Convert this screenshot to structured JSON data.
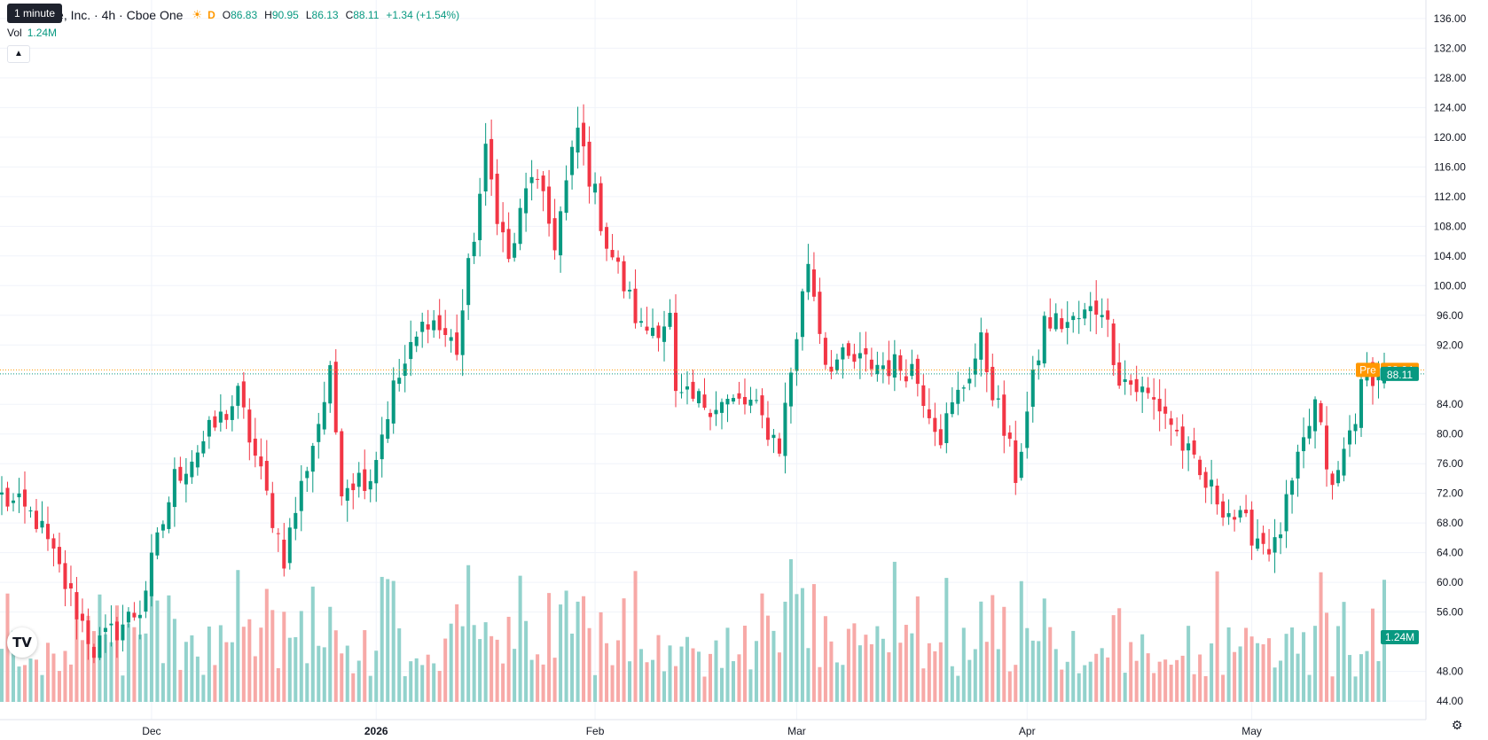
{
  "header": {
    "symbol_text": "aceMobile, Inc. · 4h · Cboe One",
    "market_icon": "sun-icon",
    "session_letter": "D",
    "o_label": "O",
    "o_value": "86.83",
    "h_label": "H",
    "h_value": "90.95",
    "l_label": "L",
    "l_value": "86.13",
    "c_label": "C",
    "c_value": "88.11",
    "change": "+1.34 (+1.54%)",
    "tooltip": "1 minute"
  },
  "volume_legend": {
    "label": "Vol",
    "value": "1.24M"
  },
  "price_tags": {
    "pre_label": "Pre",
    "pre_value": "88.64",
    "last_value": "88.11",
    "volume_value": "1.24M"
  },
  "colors": {
    "up": "#089981",
    "down": "#f23645",
    "up_vol": "#92d2cc",
    "down_vol": "#f7a9a7",
    "pre": "#ff9800",
    "grid": "#f0f3fa"
  },
  "icons": {
    "collapse": "chevron-up-icon",
    "logo": "tradingview-logo",
    "settings": "gear-icon"
  },
  "logo_text": "TV",
  "chart_data": {
    "type": "candlestick",
    "y_axis_ticks": [
      "136.00",
      "132.00",
      "128.00",
      "124.00",
      "120.00",
      "116.00",
      "112.00",
      "108.00",
      "104.00",
      "100.00",
      "96.00",
      "92.00",
      "84.00",
      "80.00",
      "76.00",
      "72.00",
      "68.00",
      "64.00",
      "60.00",
      "56.00",
      "48.00",
      "44.00"
    ],
    "y_range": [
      41.5,
      138.5
    ],
    "x_axis_labels": [
      {
        "label": "Dec",
        "bar": 26,
        "bold": false
      },
      {
        "label": "2026",
        "bar": 65,
        "bold": true
      },
      {
        "label": "Feb",
        "bar": 103,
        "bold": false
      },
      {
        "label": "Mar",
        "bar": 138,
        "bold": false
      },
      {
        "label": "Apr",
        "bar": 178,
        "bold": false
      },
      {
        "label": "May",
        "bar": 217,
        "bold": false
      }
    ],
    "price_lines": {
      "pre": 88.64,
      "last": 88.11
    },
    "volume_max": 1.8,
    "waypoints": [
      [
        0,
        71.5
      ],
      [
        6,
        68.5
      ],
      [
        16,
        51.0
      ],
      [
        24,
        56.5
      ],
      [
        30,
        74.0
      ],
      [
        41,
        85.0
      ],
      [
        49,
        63.5
      ],
      [
        53,
        76.0
      ],
      [
        57,
        87.5
      ],
      [
        59,
        73.5
      ],
      [
        64,
        74.5
      ],
      [
        68,
        86.0
      ],
      [
        74,
        96.0
      ],
      [
        79,
        91.5
      ],
      [
        84,
        117.5
      ],
      [
        88,
        103.0
      ],
      [
        92,
        115.5
      ],
      [
        96,
        106.0
      ],
      [
        100,
        121.0
      ],
      [
        105,
        106.0
      ],
      [
        111,
        94.0
      ],
      [
        116,
        95.5
      ],
      [
        117,
        84.5
      ],
      [
        130,
        84.0
      ],
      [
        135,
        78.5
      ],
      [
        140,
        103.5
      ],
      [
        143,
        90.0
      ],
      [
        158,
        89.0
      ],
      [
        163,
        80.0
      ],
      [
        170,
        92.0
      ],
      [
        176,
        74.5
      ],
      [
        181,
        95.0
      ],
      [
        186,
        95.0
      ],
      [
        191,
        97.5
      ],
      [
        194,
        88.0
      ],
      [
        199,
        85.0
      ],
      [
        202,
        83.0
      ],
      [
        208,
        74.0
      ],
      [
        215,
        68.0
      ],
      [
        221,
        64.5
      ],
      [
        228,
        84.0
      ],
      [
        231,
        72.0
      ],
      [
        237,
        88.5
      ],
      [
        240,
        88.11
      ]
    ],
    "candle_count": 241,
    "volume_unit": "M"
  }
}
